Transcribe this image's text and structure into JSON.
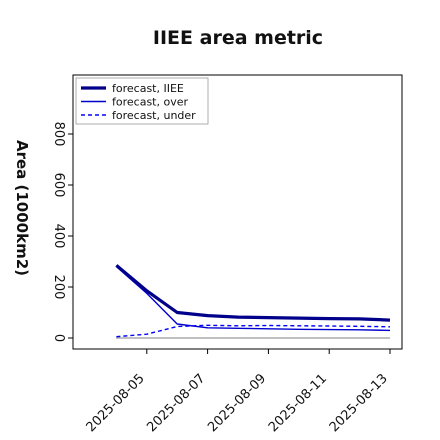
{
  "chart_data": {
    "type": "line",
    "title": "IIEE area metric",
    "xlabel": "",
    "ylabel": "Area (1000km2)",
    "x": [
      "2025-08-04",
      "2025-08-05",
      "2025-08-06",
      "2025-08-07",
      "2025-08-08",
      "2025-08-09",
      "2025-08-10",
      "2025-08-11",
      "2025-08-12",
      "2025-08-13"
    ],
    "xlim": [
      "2025-08-03",
      "2025-08-13"
    ],
    "ylim": [
      -30,
      920
    ],
    "y_ticks": [
      0,
      200,
      400,
      600,
      800
    ],
    "x_ticks": [
      {
        "date": "2025-08-05",
        "label": "2025-08-05",
        "color": "#2e8b2e"
      },
      {
        "date": "2025-08-07",
        "label": "2025-08-07",
        "color": "#111111"
      },
      {
        "date": "2025-08-09",
        "label": "2025-08-09",
        "color": "#111111"
      },
      {
        "date": "2025-08-11",
        "label": "2025-08-11",
        "color": "#111111"
      },
      {
        "date": "2025-08-13",
        "label": "2025-08-13",
        "color": "#111111"
      }
    ],
    "series": [
      {
        "name": "forecast, IIEE",
        "color": "#00008b",
        "style": "solid",
        "width": "thick",
        "values": [
          285,
          185,
          100,
          88,
          82,
          80,
          78,
          76,
          75,
          70
        ]
      },
      {
        "name": "forecast, over",
        "color": "#0000cd",
        "style": "solid",
        "width": "thin",
        "values": [
          280,
          175,
          55,
          40,
          38,
          36,
          34,
          33,
          32,
          30
        ]
      },
      {
        "name": "forecast, under",
        "color": "#0000ff",
        "style": "dashed",
        "width": "thin",
        "values": [
          5,
          15,
          45,
          50,
          48,
          49,
          48,
          47,
          46,
          44
        ]
      }
    ],
    "reference_line": {
      "value": 0,
      "color": "#808080"
    },
    "legend_position": "upper-left",
    "grid": false
  }
}
